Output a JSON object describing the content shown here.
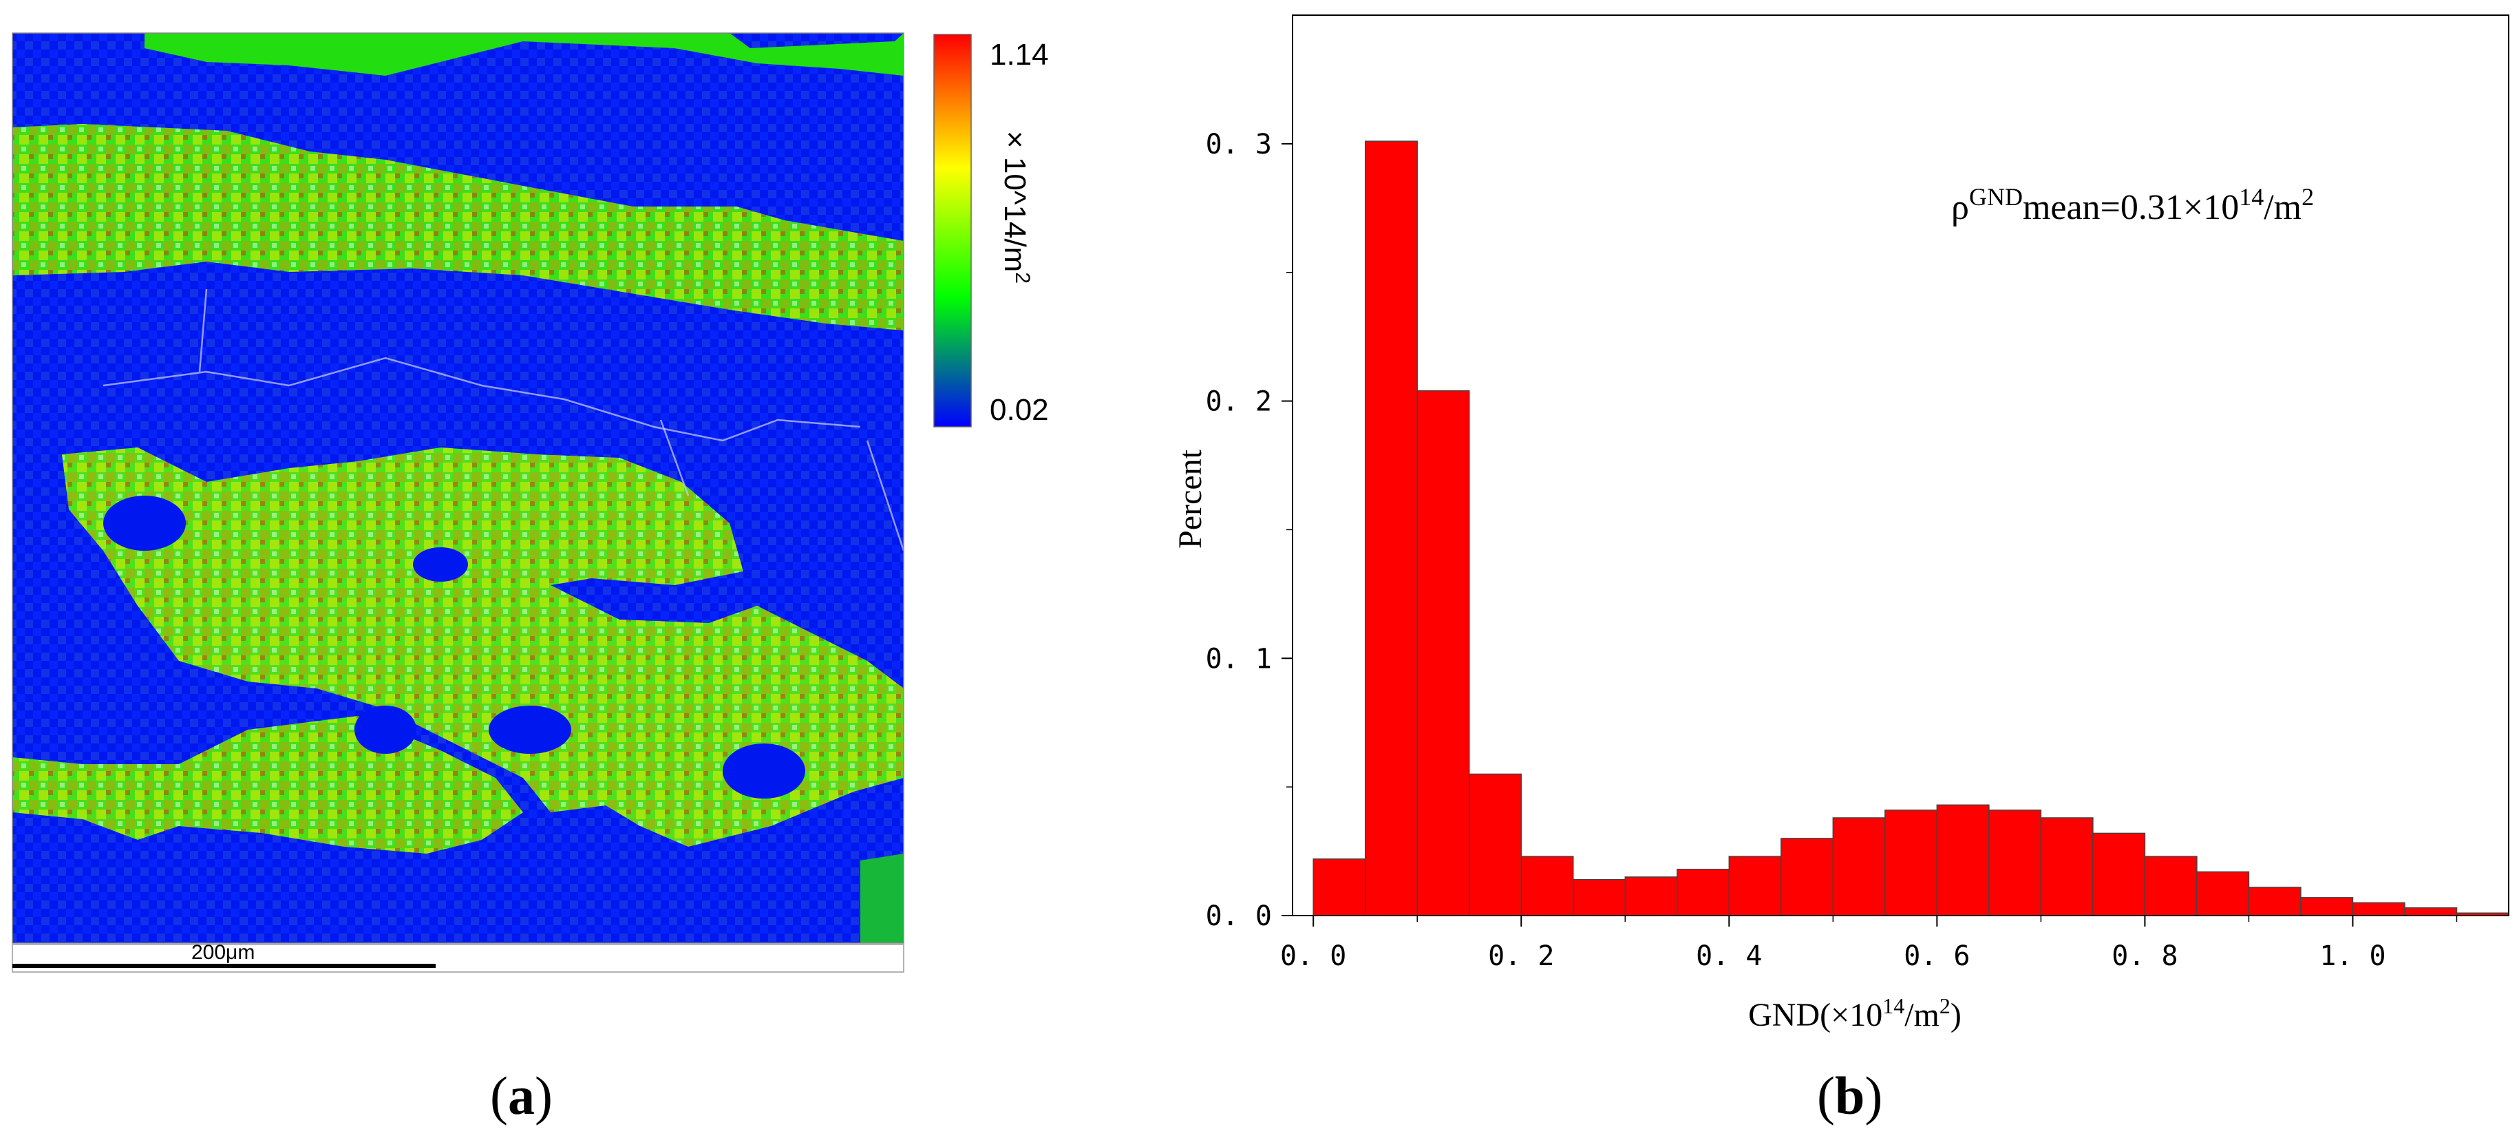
{
  "figure": {
    "panel_a": {
      "label_open": "(",
      "label_letter": "a",
      "label_close": ")",
      "map_type": "GND density map",
      "colorbar": {
        "max_label": "1.14",
        "min_label": "0.02",
        "unit_label": "× 10^14/m",
        "unit_sup": "2",
        "colors": [
          "#0000ff",
          "#00ff00",
          "#ffff00",
          "#ff0000"
        ]
      },
      "scale_bar_label": "200μm"
    },
    "panel_b": {
      "label_open": "(",
      "label_letter": "b",
      "label_close": ")"
    }
  },
  "chart_data": {
    "type": "bar",
    "title": "",
    "xlabel": "GND(×10",
    "xlabel_sup": "14",
    "xlabel_tail": "/m",
    "xlabel_sup2": "2",
    "xlabel_close": ")",
    "ylabel": "Percent",
    "annotation": {
      "prefix": "ρ",
      "sup": "GND",
      "text": "mean=0.31×10",
      "sup2": "14",
      "tail": "/m",
      "sup3": "2"
    },
    "bar_color": "#ff0000",
    "bin_width": 0.05,
    "bin_starts": [
      0.0,
      0.05,
      0.1,
      0.15,
      0.2,
      0.25,
      0.3,
      0.35,
      0.4,
      0.45,
      0.5,
      0.55,
      0.6,
      0.65,
      0.7,
      0.75,
      0.8,
      0.85,
      0.9,
      0.95,
      1.0,
      1.05,
      1.1
    ],
    "values": [
      0.022,
      0.301,
      0.204,
      0.055,
      0.023,
      0.014,
      0.015,
      0.018,
      0.023,
      0.03,
      0.038,
      0.041,
      0.043,
      0.041,
      0.038,
      0.032,
      0.023,
      0.017,
      0.011,
      0.007,
      0.005,
      0.003,
      0.001
    ],
    "xlim": [
      -0.02,
      1.15
    ],
    "ylim": [
      0.0,
      0.35
    ],
    "xticks": [
      0.0,
      0.2,
      0.4,
      0.6,
      0.8,
      1.0
    ],
    "xtick_labels": [
      "0. 0",
      "0. 2",
      "0. 4",
      "0. 6",
      "0. 8",
      "1. 0"
    ],
    "yticks": [
      0.0,
      0.1,
      0.2,
      0.3
    ],
    "ytick_labels": [
      "0. 0",
      "0. 1",
      "0. 2",
      "0. 3"
    ],
    "grid": false,
    "legend": "none"
  }
}
